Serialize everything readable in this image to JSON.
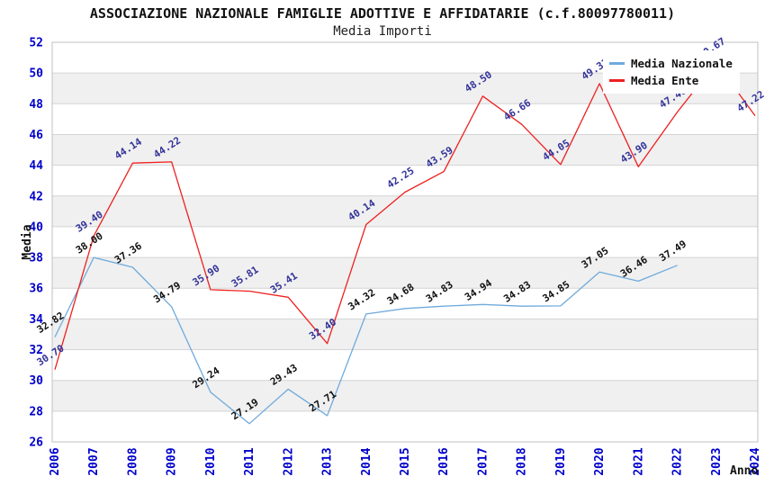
{
  "header": {
    "title": "ASSOCIAZIONE NAZIONALE FAMIGLIE ADOTTIVE E AFFIDATARIE (c.f.80097780011)",
    "subtitle": "Media Importi"
  },
  "legend": {
    "position": "top-right",
    "items": [
      {
        "label": "Media Nazionale",
        "color": "#6FAADC"
      },
      {
        "label": "Media Ente",
        "color": "#EE2020"
      }
    ]
  },
  "colors": {
    "tick_label_blue": "#0000CC",
    "grid_line": "#D4D4D4",
    "band_gray": "#F0F0F0",
    "plot_border": "#C0C0C0",
    "nazionale_line": "#6FAADC",
    "ente_line": "#EE2020",
    "nazionale_value_label": "#111111",
    "ente_value_label": "#333399"
  },
  "chart_data": {
    "type": "line",
    "title": "ASSOCIAZIONE NAZIONALE FAMIGLIE ADOTTIVE E AFFIDATARIE (c.f.80097780011)",
    "subtitle": "Media Importi",
    "xlabel": "Anno",
    "ylabel": "Media",
    "ylim": [
      26,
      52
    ],
    "ytick_step": 2,
    "yticks": [
      26,
      28,
      30,
      32,
      34,
      36,
      38,
      40,
      42,
      44,
      46,
      48,
      50,
      52
    ],
    "grid": "horizontal-bands",
    "legend_position": "top-right",
    "categories": [
      "2006",
      "2007",
      "2008",
      "2009",
      "2010",
      "2011",
      "2012",
      "2013",
      "2014",
      "2015",
      "2016",
      "2017",
      "2018",
      "2019",
      "2020",
      "2021",
      "2022",
      "2023",
      "2024"
    ],
    "series": [
      {
        "name": "Media Nazionale",
        "color": "#6FAADC",
        "label_color": "#111111",
        "values": [
          32.82,
          38.0,
          37.36,
          34.79,
          29.24,
          27.19,
          29.43,
          27.71,
          34.32,
          34.68,
          34.83,
          34.94,
          34.83,
          34.85,
          37.05,
          36.46,
          37.49,
          null,
          null
        ]
      },
      {
        "name": "Media Ente",
        "color": "#EE2020",
        "label_color": "#333399",
        "values": [
          30.7,
          39.4,
          44.14,
          44.22,
          35.9,
          35.81,
          35.41,
          32.4,
          40.14,
          42.25,
          43.59,
          48.5,
          46.66,
          44.05,
          49.31,
          43.9,
          47.46,
          50.67,
          47.22
        ]
      }
    ]
  }
}
